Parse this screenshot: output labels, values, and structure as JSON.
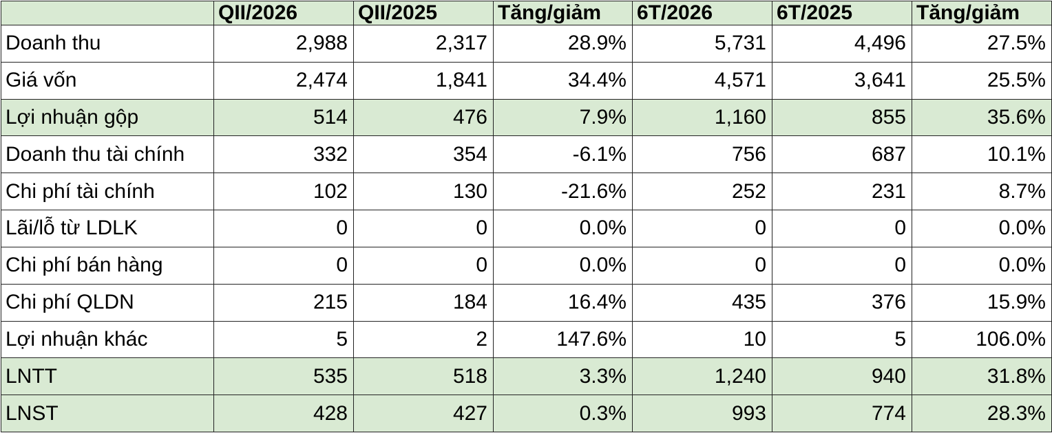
{
  "table": {
    "header": [
      "QII/2026",
      "QII/2025",
      "Tăng/giảm",
      "6T/2026",
      "6T/2025",
      "Tăng/giảm"
    ],
    "rows": [
      [
        "Doanh thu",
        "2,988",
        "2,317",
        "28.9%",
        "5,731",
        "4,496",
        "27.5%"
      ],
      [
        "Giá vốn",
        "2,474",
        "1,841",
        "34.4%",
        "4,571",
        "3,641",
        "25.5%"
      ],
      [
        "Lợi nhuận gộp",
        "514",
        "476",
        "7.9%",
        "1,160",
        "855",
        "35.6%"
      ],
      [
        "Doanh thu tài chính",
        "332",
        "354",
        "-6.1%",
        "756",
        "687",
        "10.1%"
      ],
      [
        "Chi phí tài chính",
        "102",
        "130",
        "-21.6%",
        "252",
        "231",
        "8.7%"
      ],
      [
        "Lãi/lỗ từ LDLK",
        "0",
        "0",
        "0.0%",
        "0",
        "0",
        "0.0%"
      ],
      [
        "Chi phí bán hàng",
        "0",
        "0",
        "0.0%",
        "0",
        "0",
        "0.0%"
      ],
      [
        "Chi phí QLDN",
        "215",
        "184",
        "16.4%",
        "435",
        "376",
        "15.9%"
      ],
      [
        "Lợi nhuận khác",
        "5",
        "2",
        "147.6%",
        "10",
        "5",
        "106.0%"
      ],
      [
        "LNTT",
        "535",
        "518",
        "3.3%",
        "1,240",
        "940",
        "31.8%"
      ],
      [
        "LNST",
        "428",
        "427",
        "0.3%",
        "993",
        "774",
        "28.3%"
      ]
    ]
  }
}
